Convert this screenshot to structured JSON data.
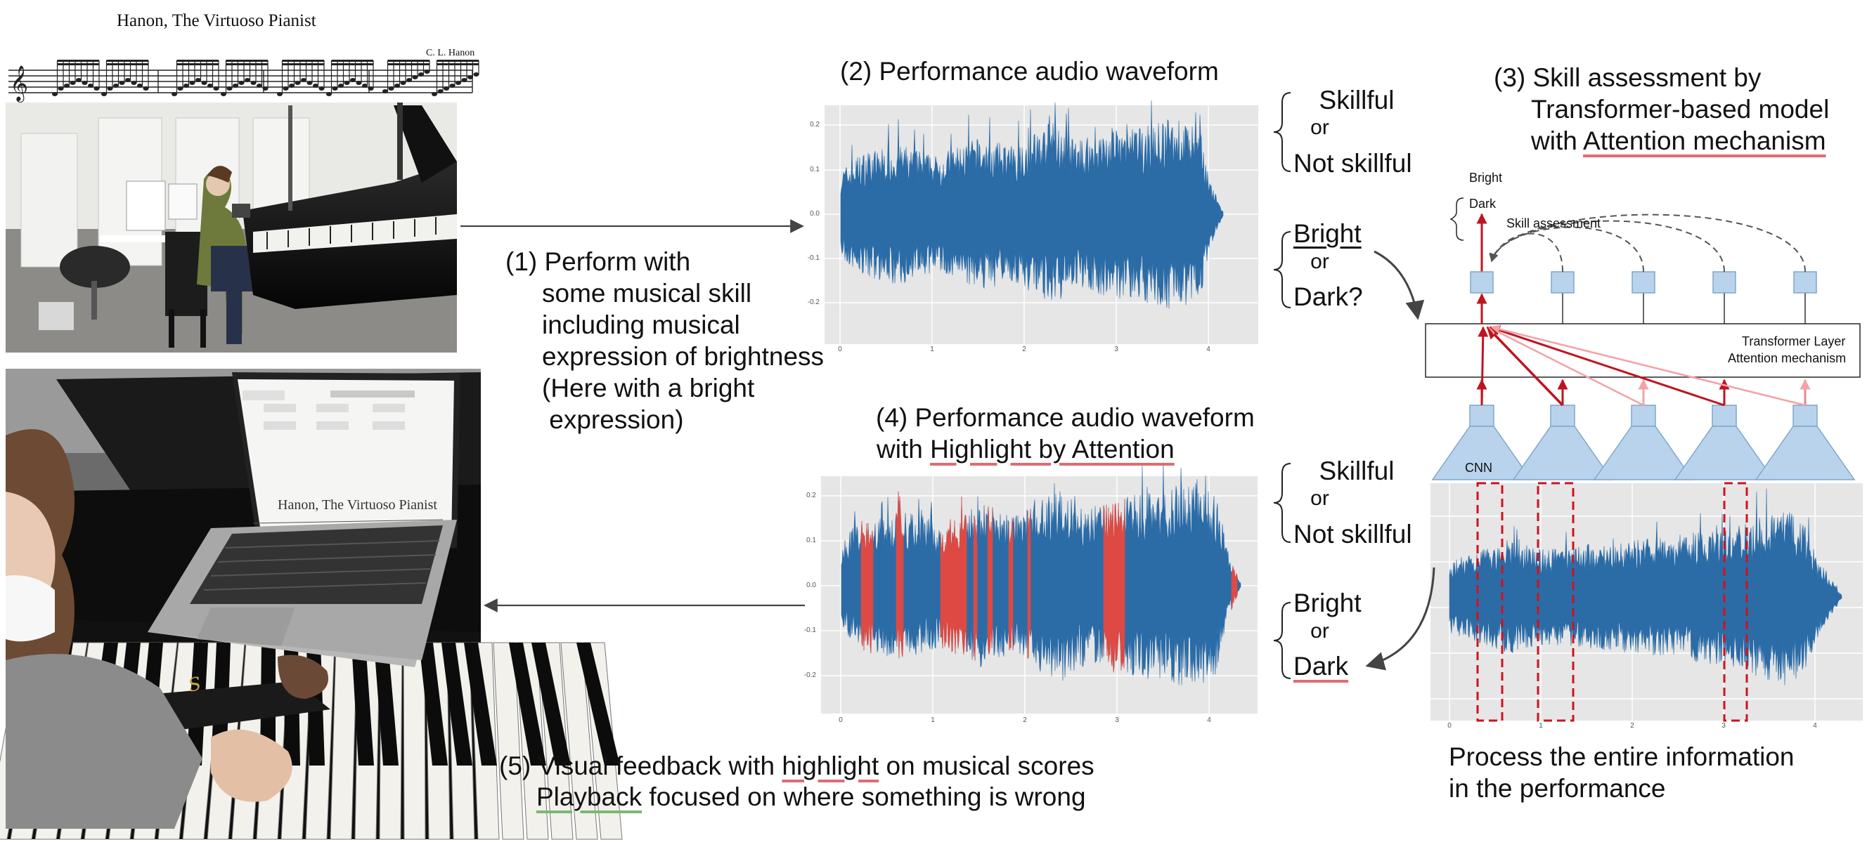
{
  "score": {
    "title": "Hanon, The Virtuoso Pianist",
    "composer": "C. L. Hanon"
  },
  "step1": {
    "lines": [
      "(1) Perform with",
      "some musical skill",
      "including musical",
      "expression of brightness",
      "(Here with a bright",
      " expression)"
    ]
  },
  "step2": {
    "title": "(2) Performance audio waveform",
    "xticks": [
      "0",
      "1",
      "2",
      "3",
      "4"
    ],
    "yticks": [
      "0.2",
      "0.1",
      "0.0",
      "-0.1",
      "-0.2"
    ]
  },
  "labels_top": {
    "skillful": "Skillful",
    "or1": "or",
    "not_skillful": "Not skillful",
    "bright": "Bright",
    "or2": "or",
    "dark": "Dark?"
  },
  "step3": {
    "line1": "(3) Skill assessment by",
    "line2": "Transformer-based model",
    "line3_prefix": "with ",
    "line3_highlight": "Attention mechanism",
    "bright": "Bright",
    "dark": "Dark",
    "skill_assessment": "Skill assessment",
    "transformer_line1": "Transformer Layer",
    "transformer_line2": "Attention mechanism",
    "cnn": "CNN",
    "xticks": [
      "0",
      "1",
      "2",
      "3",
      "4"
    ]
  },
  "step4": {
    "line1": "(4) Performance audio waveform",
    "line2_prefix": "with ",
    "line2_highlight": "Highlight by Attention",
    "xticks": [
      "0",
      "1",
      "2",
      "3",
      "4"
    ],
    "yticks": [
      "0.2",
      "0.1",
      "0.0",
      "-0.1",
      "-0.2"
    ]
  },
  "labels_bottom": {
    "skillful": "Skillful",
    "or1": "or",
    "not_skillful": "Not skillful",
    "bright": "Bright",
    "or2": "or",
    "dark": "Dark"
  },
  "step5": {
    "line1_prefix": "(5) Visual feedback with ",
    "line1_highlight": "highlight",
    "line1_suffix": " on musical scores",
    "line2_highlight": "Playback",
    "line2_suffix": " focused on where something is wrong"
  },
  "process": {
    "line1": "Process the entire information",
    "line2": "in the performance"
  },
  "laptop_screen": {
    "title": "Hanon, The Virtuoso Pianist"
  },
  "colors": {
    "waveform": "#2b6ca7",
    "highlight": "#de4a43",
    "attention_strong": "#c0141f",
    "attention_weak": "#f2a3a6",
    "block_fill": "#b9d3ec",
    "block_stroke": "#7fa7cc",
    "plot_bg": "#e6e6e6"
  }
}
